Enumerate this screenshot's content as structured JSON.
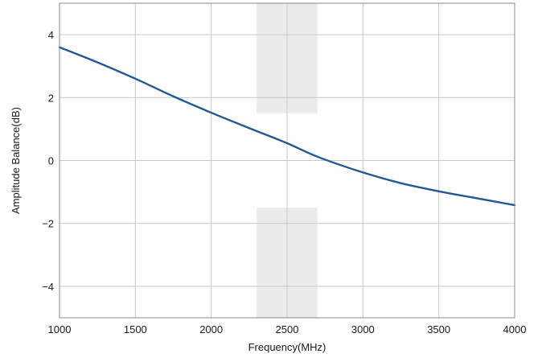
{
  "chart_data": {
    "type": "line",
    "title": "",
    "xlabel": "Frequency(MHz)",
    "ylabel": "Amplitude Balance(dB)",
    "xlim": [
      1000,
      4000
    ],
    "ylim": [
      -5,
      5
    ],
    "x_ticks": [
      1000,
      1500,
      2000,
      2500,
      3000,
      3500,
      4000
    ],
    "y_ticks": [
      -4,
      -2,
      0,
      2,
      4
    ],
    "x_tick_labels": [
      "1000",
      "1500",
      "2000",
      "2500",
      "3000",
      "3500",
      "4000"
    ],
    "y_tick_labels": [
      "−4",
      "−2",
      "0",
      "2",
      "4"
    ],
    "grid": true,
    "line_color": "#1f5a96",
    "shade_color": "#ebebeb",
    "series": [
      {
        "x": [
          1000,
          1250,
          1500,
          1750,
          2000,
          2250,
          2500,
          2700,
          3000,
          3250,
          3500,
          3750,
          4000
        ],
        "y": [
          3.6,
          3.12,
          2.6,
          2.04,
          1.52,
          1.03,
          0.55,
          0.12,
          -0.38,
          -0.72,
          -0.98,
          -1.2,
          -1.42
        ]
      }
    ],
    "shaded_regions": [
      {
        "x": [
          2300,
          2700
        ],
        "y": [
          1.5,
          5
        ]
      },
      {
        "x": [
          2300,
          2700
        ],
        "y": [
          -5,
          -1.5
        ]
      }
    ]
  }
}
